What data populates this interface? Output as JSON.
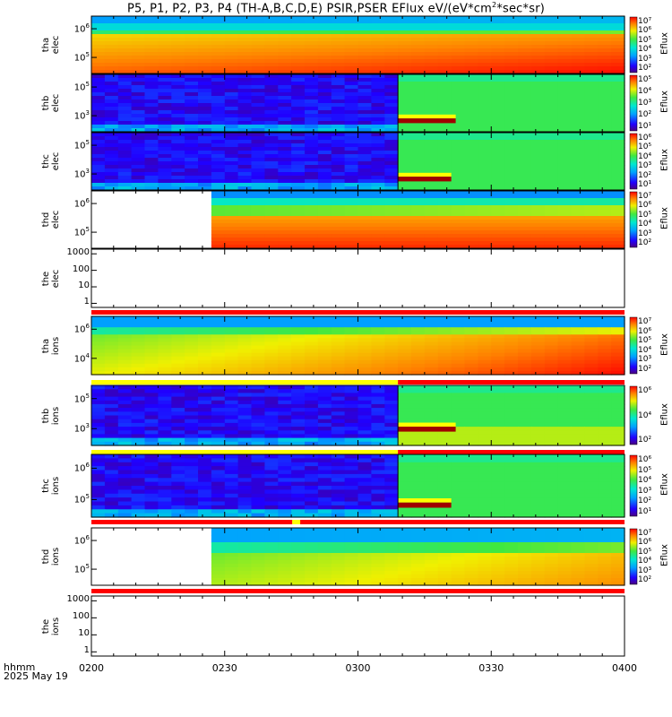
{
  "title_prefix": "P5, P1, P2, P3, P4 (TH-A,B,C,D,E) PSIR,PSER EFlux eV/(eV*cm",
  "title_sup": "2",
  "title_suffix": "*sec*sr)",
  "footer": {
    "line1": "hhmm",
    "line2": "2025 May 19"
  },
  "colors": {
    "background": "#ffffff",
    "axis": "#000000",
    "flag_red": "#ff0000",
    "flag_yellow": "#ffff00"
  },
  "chart_data": {
    "type": "heatmap",
    "x_axis": {
      "unit": "hhmm",
      "range": [
        "0200",
        "0400"
      ],
      "tick_labels": [
        "0200",
        "0230",
        "0300",
        "0330",
        "0400"
      ]
    },
    "colorbar_title": "Eflux",
    "panels": [
      {
        "label_line1": "tha",
        "label_line2": "elec",
        "scale": "log",
        "yticks": [
          {
            "base": "10",
            "exp": "6"
          },
          {
            "base": "10",
            "exp": "5"
          }
        ],
        "colorbar_labels": [
          "10⁷",
          "10⁶",
          "10⁵",
          "10⁴",
          "10³",
          "10²"
        ],
        "data_start": "0200",
        "data_gap_end": null,
        "mode_change": null,
        "description": "high-energy: blue; low-energy: orange-red",
        "flag_bar": null
      },
      {
        "label_line1": "thb",
        "label_line2": "elec",
        "scale": "log",
        "yticks": [
          {
            "base": "10",
            "exp": "5"
          },
          {
            "base": "10",
            "exp": "3"
          }
        ],
        "colorbar_labels": [
          "10⁵",
          "10⁴",
          "10³",
          "10²",
          "10¹"
        ],
        "data_start": "0200",
        "data_gap_end": null,
        "mode_change": "0309",
        "flag_bar": null
      },
      {
        "label_line1": "thc",
        "label_line2": "elec",
        "scale": "log",
        "yticks": [
          {
            "base": "10",
            "exp": "5"
          },
          {
            "base": "10",
            "exp": "3"
          }
        ],
        "colorbar_labels": [
          "10⁶",
          "10⁵",
          "10⁴",
          "10³",
          "10²",
          "10¹"
        ],
        "data_start": "0200",
        "data_gap_end": null,
        "mode_change": "0309",
        "flag_bar": null
      },
      {
        "label_line1": "thd",
        "label_line2": "elec",
        "scale": "log",
        "yticks": [
          {
            "base": "10",
            "exp": "6"
          },
          {
            "base": "10",
            "exp": "5"
          }
        ],
        "colorbar_labels": [
          "10⁷",
          "10⁶",
          "10⁵",
          "10⁴",
          "10³",
          "10²"
        ],
        "data_start": "0227",
        "data_gap_end": null,
        "mode_change": null,
        "flag_bar": null
      },
      {
        "label_line1": "the",
        "label_line2": "elec",
        "scale": "log",
        "yticks": [
          {
            "base": "1000",
            "exp": ""
          },
          {
            "base": "100",
            "exp": ""
          },
          {
            "base": "10",
            "exp": ""
          },
          {
            "base": "1",
            "exp": ""
          }
        ],
        "colorbar_labels": [],
        "empty": true,
        "flag_bar": "red"
      },
      {
        "label_line1": "tha",
        "label_line2": "ions",
        "scale": "log",
        "yticks": [
          {
            "base": "10",
            "exp": "6"
          },
          {
            "base": "10",
            "exp": "4"
          }
        ],
        "colorbar_labels": [
          "10⁷",
          "10⁶",
          "10⁵",
          "10⁴",
          "10³",
          "10²"
        ],
        "data_start": "0200",
        "mode_change": null,
        "flag_bar": "yellow-then-red at 0309"
      },
      {
        "label_line1": "thb",
        "label_line2": "ions",
        "scale": "log",
        "yticks": [
          {
            "base": "10",
            "exp": "5"
          },
          {
            "base": "10",
            "exp": "3"
          }
        ],
        "colorbar_labels": [
          "10⁶",
          "10⁴",
          "10²"
        ],
        "data_start": "0200",
        "mode_change": "0309",
        "flag_bar": "yellow-then-red at 0309"
      },
      {
        "label_line1": "thc",
        "label_line2": "ions",
        "scale": "log",
        "yticks": [
          {
            "base": "10",
            "exp": "6"
          },
          {
            "base": "10",
            "exp": "5"
          }
        ],
        "colorbar_labels": [
          "10⁶",
          "10⁵",
          "10⁴",
          "10³",
          "10²",
          "10¹"
        ],
        "data_start": "0200",
        "mode_change": "0309",
        "flag_bar": "red with yellow near 0246"
      },
      {
        "label_line1": "thd",
        "label_line2": "ions",
        "scale": "log",
        "yticks": [
          {
            "base": "10",
            "exp": "6"
          },
          {
            "base": "10",
            "exp": "5"
          }
        ],
        "colorbar_labels": [
          "10⁷",
          "10⁶",
          "10⁵",
          "10⁴",
          "10³",
          "10²"
        ],
        "data_start": "0227",
        "mode_change": null,
        "flag_bar": "red"
      },
      {
        "label_line1": "the",
        "label_line2": "ions",
        "scale": "log",
        "yticks": [
          {
            "base": "1000",
            "exp": ""
          },
          {
            "base": "100",
            "exp": ""
          },
          {
            "base": "10",
            "exp": ""
          },
          {
            "base": "1",
            "exp": ""
          }
        ],
        "colorbar_labels": [],
        "empty": true,
        "flag_bar": null
      }
    ]
  }
}
